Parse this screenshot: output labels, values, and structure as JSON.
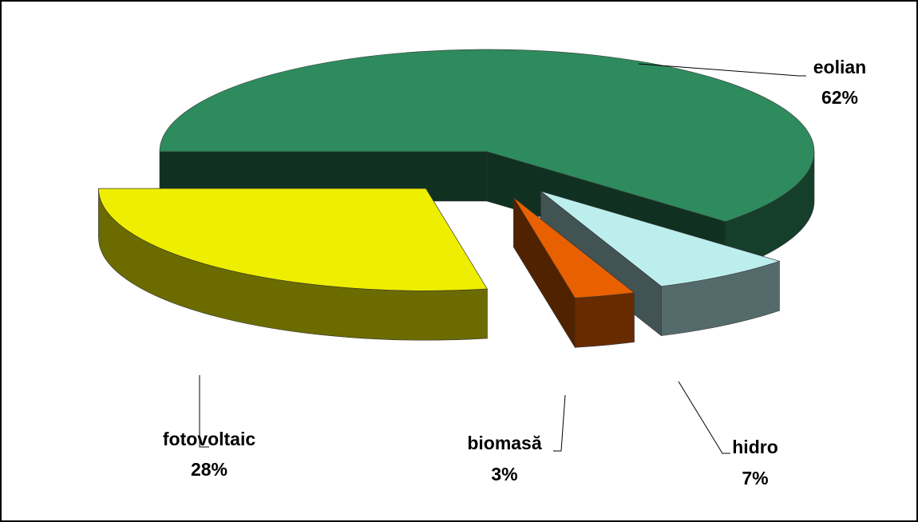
{
  "chart_data": {
    "type": "pie3d",
    "categories": [
      "eolian",
      "hidro",
      "biomasă",
      "fotovoltaic"
    ],
    "values": [
      62,
      7,
      3,
      28
    ],
    "value_labels": [
      "62%",
      "7%",
      "3%",
      "28%"
    ],
    "colors": [
      "#2e8b5e",
      "#bdeeee",
      "#e86000",
      "#eeee00"
    ]
  }
}
